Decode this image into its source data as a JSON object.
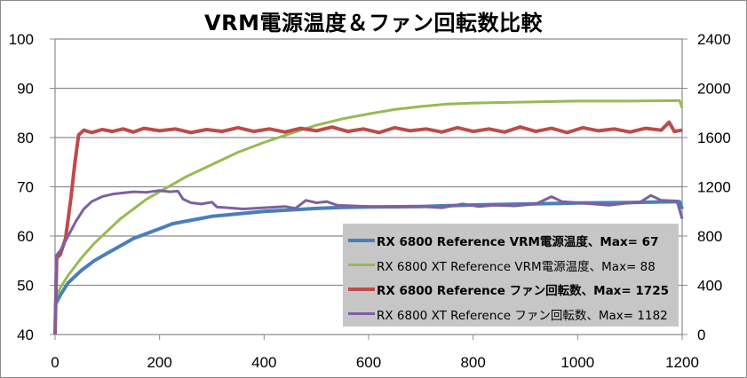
{
  "chart_data": {
    "type": "line",
    "title": "VRM電源温度＆ファン回転数比較",
    "xlabel": "",
    "ylabel": "",
    "y2label": "",
    "xlim": [
      0,
      1200
    ],
    "ylim": [
      40,
      100
    ],
    "y2lim": [
      0,
      2400
    ],
    "grid": true,
    "x_ticks": [
      "0",
      "200",
      "400",
      "600",
      "800",
      "1000",
      "1200"
    ],
    "y_ticks": [
      "40",
      "50",
      "60",
      "70",
      "80",
      "90",
      "100"
    ],
    "y2_ticks": [
      "0",
      "400",
      "800",
      "1200",
      "1600",
      "2000",
      "2400"
    ],
    "legend_position": "bottom-right",
    "series": [
      {
        "name": "RX 6800 Reference VRM電源温度、Max= 67",
        "axis": "left",
        "color": "#4a7ebb",
        "bold": true,
        "points": [
          [
            0,
            46
          ],
          [
            10,
            48
          ],
          [
            25,
            50.5
          ],
          [
            50,
            53
          ],
          [
            75,
            55
          ],
          [
            100,
            56.5
          ],
          [
            125,
            58
          ],
          [
            150,
            59.5
          ],
          [
            175,
            60.5
          ],
          [
            200,
            61.5
          ],
          [
            225,
            62.5
          ],
          [
            250,
            63
          ],
          [
            275,
            63.5
          ],
          [
            300,
            64
          ],
          [
            350,
            64.5
          ],
          [
            400,
            65
          ],
          [
            450,
            65.3
          ],
          [
            500,
            65.6
          ],
          [
            550,
            65.8
          ],
          [
            600,
            65.9
          ],
          [
            700,
            66
          ],
          [
            800,
            66.3
          ],
          [
            900,
            66.5
          ],
          [
            1000,
            66.7
          ],
          [
            1100,
            66.8
          ],
          [
            1195,
            67
          ],
          [
            1200,
            65.5
          ]
        ]
      },
      {
        "name": "RX 6800 XT Reference VRM電源温度、Max= 88",
        "axis": "left",
        "color": "#98b954",
        "bold": false,
        "points": [
          [
            0,
            47
          ],
          [
            10,
            49.5
          ],
          [
            25,
            52
          ],
          [
            50,
            55.5
          ],
          [
            75,
            58.5
          ],
          [
            100,
            61
          ],
          [
            125,
            63.5
          ],
          [
            150,
            65.5
          ],
          [
            175,
            67.5
          ],
          [
            200,
            69
          ],
          [
            250,
            72
          ],
          [
            300,
            74.5
          ],
          [
            350,
            77
          ],
          [
            400,
            79
          ],
          [
            450,
            80.8
          ],
          [
            500,
            82.5
          ],
          [
            550,
            83.8
          ],
          [
            600,
            84.8
          ],
          [
            650,
            85.7
          ],
          [
            700,
            86.3
          ],
          [
            750,
            86.8
          ],
          [
            800,
            87
          ],
          [
            900,
            87.2
          ],
          [
            1000,
            87.4
          ],
          [
            1100,
            87.4
          ],
          [
            1195,
            87.5
          ],
          [
            1200,
            86
          ]
        ]
      },
      {
        "name": "RX 6800 Reference ファン回転数、Max= 1725",
        "axis": "right",
        "color": "#be4b48",
        "bold": true,
        "points": [
          [
            0,
            0
          ],
          [
            3,
            620
          ],
          [
            10,
            650
          ],
          [
            20,
            780
          ],
          [
            30,
            1100
          ],
          [
            38,
            1400
          ],
          [
            45,
            1620
          ],
          [
            55,
            1660
          ],
          [
            70,
            1640
          ],
          [
            90,
            1665
          ],
          [
            110,
            1650
          ],
          [
            130,
            1670
          ],
          [
            150,
            1645
          ],
          [
            170,
            1675
          ],
          [
            200,
            1655
          ],
          [
            230,
            1670
          ],
          [
            260,
            1640
          ],
          [
            290,
            1665
          ],
          [
            320,
            1650
          ],
          [
            350,
            1680
          ],
          [
            380,
            1650
          ],
          [
            410,
            1670
          ],
          [
            440,
            1645
          ],
          [
            470,
            1675
          ],
          [
            500,
            1655
          ],
          [
            530,
            1685
          ],
          [
            560,
            1650
          ],
          [
            590,
            1670
          ],
          [
            620,
            1640
          ],
          [
            650,
            1680
          ],
          [
            680,
            1655
          ],
          [
            710,
            1670
          ],
          [
            740,
            1645
          ],
          [
            770,
            1680
          ],
          [
            800,
            1650
          ],
          [
            830,
            1670
          ],
          [
            860,
            1645
          ],
          [
            890,
            1685
          ],
          [
            920,
            1650
          ],
          [
            950,
            1675
          ],
          [
            980,
            1640
          ],
          [
            1010,
            1680
          ],
          [
            1040,
            1655
          ],
          [
            1070,
            1670
          ],
          [
            1100,
            1645
          ],
          [
            1130,
            1675
          ],
          [
            1160,
            1660
          ],
          [
            1175,
            1725
          ],
          [
            1185,
            1650
          ],
          [
            1200,
            1660
          ]
        ]
      },
      {
        "name": "RX 6800 XT Reference ファン回転数、Max= 1182",
        "axis": "right",
        "color": "#7d60a0",
        "bold": false,
        "points": [
          [
            0,
            0
          ],
          [
            2,
            640
          ],
          [
            10,
            680
          ],
          [
            25,
            800
          ],
          [
            40,
            920
          ],
          [
            55,
            1020
          ],
          [
            70,
            1080
          ],
          [
            90,
            1120
          ],
          [
            110,
            1140
          ],
          [
            130,
            1150
          ],
          [
            150,
            1160
          ],
          [
            175,
            1155
          ],
          [
            200,
            1170
          ],
          [
            220,
            1160
          ],
          [
            235,
            1165
          ],
          [
            245,
            1100
          ],
          [
            260,
            1070
          ],
          [
            280,
            1060
          ],
          [
            300,
            1075
          ],
          [
            310,
            1035
          ],
          [
            330,
            1030
          ],
          [
            360,
            1020
          ],
          [
            400,
            1030
          ],
          [
            440,
            1040
          ],
          [
            460,
            1025
          ],
          [
            480,
            1090
          ],
          [
            500,
            1070
          ],
          [
            520,
            1080
          ],
          [
            540,
            1050
          ],
          [
            570,
            1045
          ],
          [
            600,
            1040
          ],
          [
            650,
            1035
          ],
          [
            700,
            1040
          ],
          [
            740,
            1030
          ],
          [
            780,
            1060
          ],
          [
            810,
            1040
          ],
          [
            840,
            1050
          ],
          [
            880,
            1045
          ],
          [
            920,
            1060
          ],
          [
            950,
            1120
          ],
          [
            970,
            1080
          ],
          [
            1000,
            1070
          ],
          [
            1030,
            1060
          ],
          [
            1060,
            1050
          ],
          [
            1090,
            1065
          ],
          [
            1120,
            1075
          ],
          [
            1140,
            1130
          ],
          [
            1160,
            1090
          ],
          [
            1190,
            1085
          ],
          [
            1200,
            940
          ]
        ]
      }
    ]
  }
}
